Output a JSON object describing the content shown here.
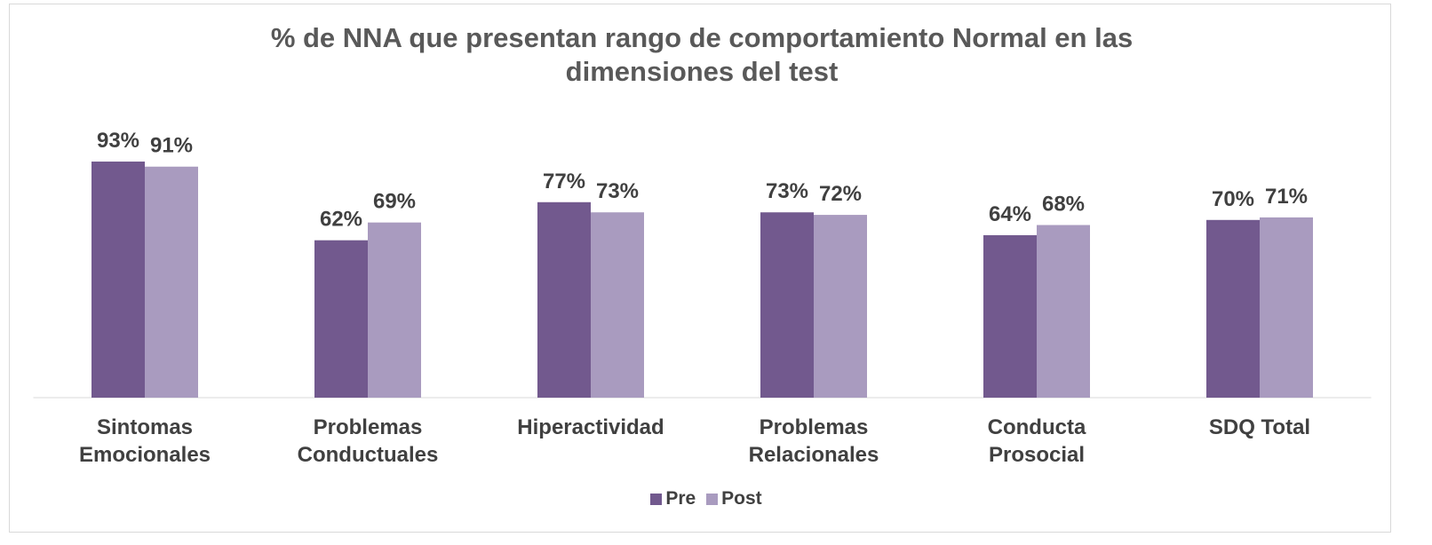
{
  "chart_data": {
    "type": "bar",
    "title": "% de NNA que presentan rango de comportamiento Normal en las dimensiones del test",
    "categories": [
      "Sintomas Emocionales",
      "Problemas Conductuales",
      "Hiperactividad",
      "Problemas Relacionales",
      "Conducta Prosocial",
      "SDQ Total"
    ],
    "series": [
      {
        "name": "Pre",
        "color": "#72598e",
        "values": [
          93,
          62,
          77,
          73,
          64,
          70
        ],
        "value_labels": [
          "93%",
          "62%",
          "77%",
          "73%",
          "64%",
          "70%"
        ]
      },
      {
        "name": "Post",
        "color": "#a99bbf",
        "values": [
          91,
          69,
          73,
          72,
          68,
          71
        ],
        "value_labels": [
          "91%",
          "69%",
          "73%",
          "72%",
          "68%",
          "71%"
        ]
      }
    ],
    "ylim": [
      0,
      100
    ],
    "legend": "bottom"
  }
}
